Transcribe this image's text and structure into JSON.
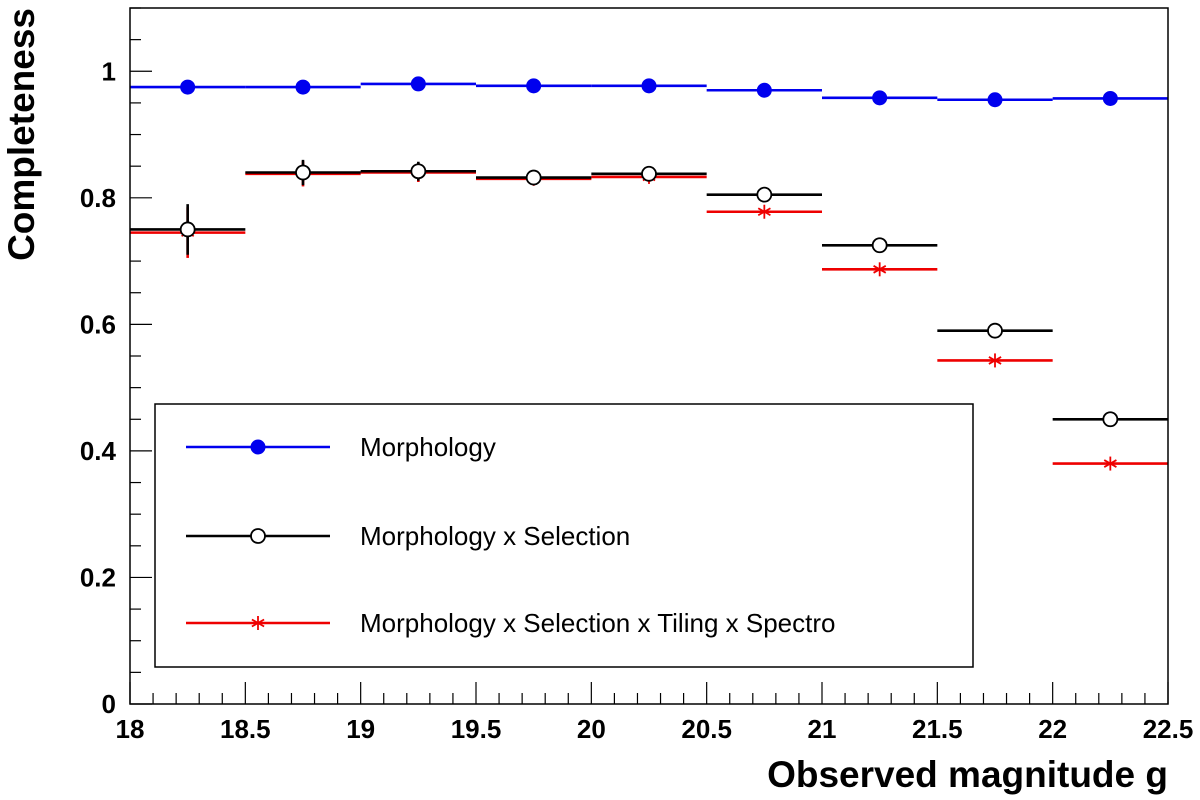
{
  "chart_data": {
    "type": "scatter",
    "xlabel": "Observed magnitude g",
    "ylabel": "Completeness",
    "xlim": [
      18,
      22.5
    ],
    "ylim": [
      0,
      1.1
    ],
    "x_ticks": [
      "18",
      "18.5",
      "19",
      "19.5",
      "20",
      "20.5",
      "21",
      "21.5",
      "22",
      "22.5"
    ],
    "y_ticks": [
      "0",
      "0.2",
      "0.4",
      "0.6",
      "0.8",
      "1"
    ],
    "grid": false,
    "legend_position": "bottom-left",
    "bin_edges": [
      18,
      18.5,
      19,
      19.5,
      20,
      20.5,
      21,
      21.5,
      22,
      22.5
    ],
    "x": [
      18.25,
      18.75,
      19.25,
      19.75,
      20.25,
      20.75,
      21.25,
      21.75,
      22.25
    ],
    "series": [
      {
        "name": "Morphology",
        "color": "#0000ee",
        "marker": "filled-circle",
        "x_start": 18,
        "values": [
          0.975,
          0.975,
          0.98,
          0.977,
          0.977,
          0.97,
          0.958,
          0.955,
          0.957
        ],
        "errors": [
          0,
          0,
          0,
          0,
          0,
          0,
          0,
          0,
          0
        ]
      },
      {
        "name": "Morphology x Selection",
        "color": "#000000",
        "marker": "open-circle",
        "x_start": 18,
        "values": [
          0.75,
          0.84,
          0.842,
          0.832,
          0.838,
          0.805,
          0.725,
          0.59,
          0.45
        ],
        "errors": [
          0.04,
          0.02,
          0.015,
          0.01,
          0.008,
          0,
          0,
          0,
          0
        ]
      },
      {
        "name": "Morphology x Selection x Tiling x Spectro",
        "color": "#ee0000",
        "marker": "asterisk",
        "x_start": 18,
        "values": [
          0.745,
          0.838,
          0.84,
          0.83,
          0.833,
          0.778,
          0.687,
          0.543,
          0.38
        ],
        "errors": [
          0.04,
          0.02,
          0.015,
          0.01,
          0.008,
          0,
          0,
          0,
          0
        ]
      }
    ]
  }
}
